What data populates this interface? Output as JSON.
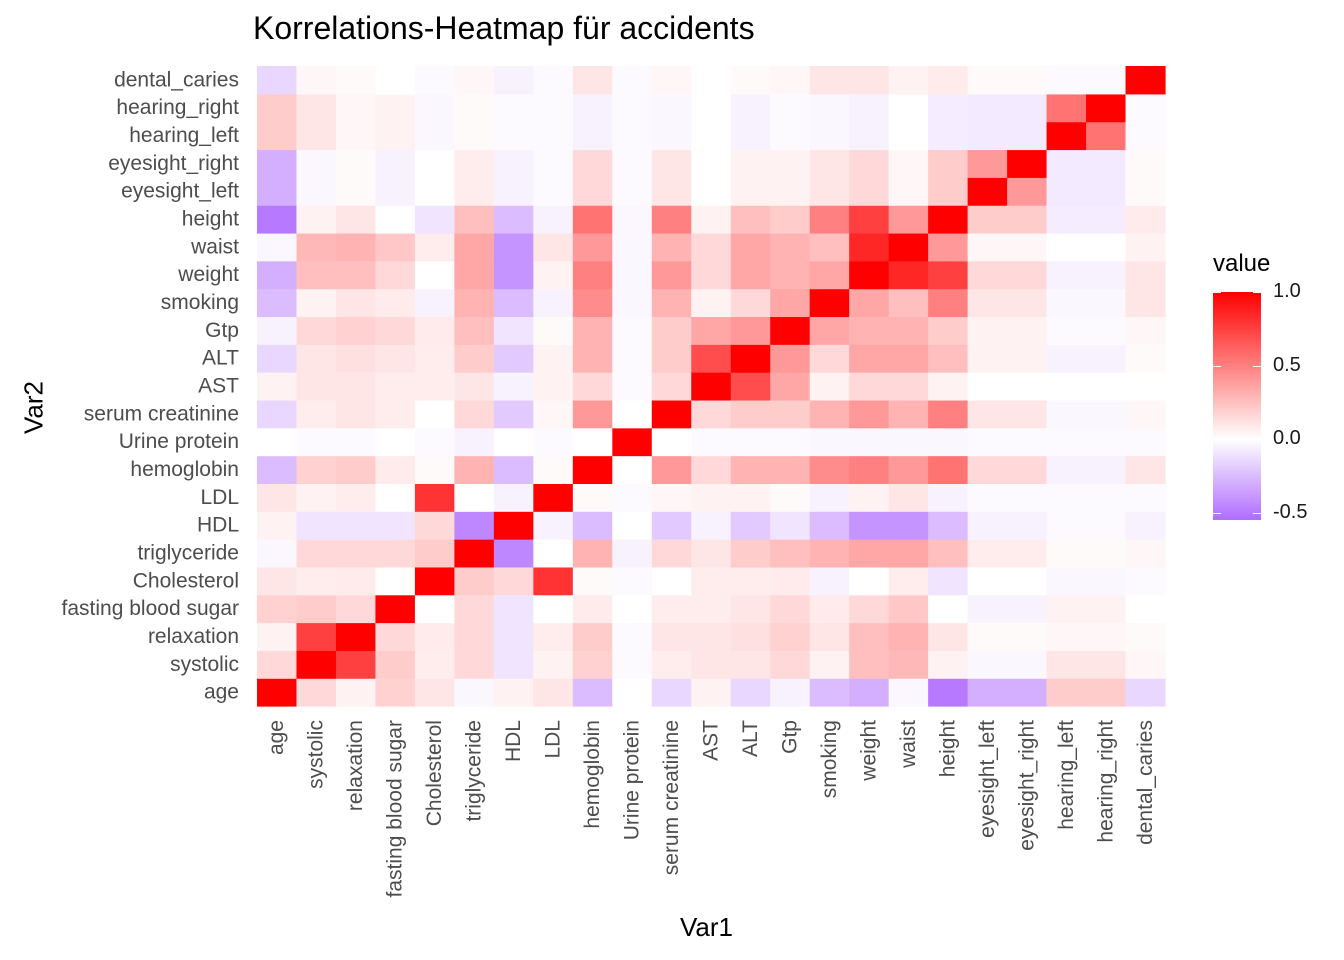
{
  "chart_data": {
    "type": "heatmap",
    "title": "Korrelations-Heatmap für accidents",
    "xlabel": "Var1",
    "ylabel": "Var2",
    "variables": [
      "age",
      "systolic",
      "relaxation",
      "fasting blood sugar",
      "Cholesterol",
      "triglyceride",
      "HDL",
      "LDL",
      "hemoglobin",
      "Urine protein",
      "serum creatinine",
      "AST",
      "ALT",
      "Gtp",
      "smoking",
      "weight",
      "waist",
      "height",
      "eyesight_left",
      "eyesight_right",
      "hearing_left",
      "hearing_right",
      "dental_caries"
    ],
    "legend": {
      "title": "value",
      "ticks": [
        "1.0",
        "0.5",
        "0.0",
        "-0.5"
      ],
      "tick_values": [
        1.0,
        0.5,
        0.0,
        -0.5
      ],
      "range": [
        -0.55,
        1.0
      ],
      "colors": {
        "low": "#b06cff",
        "mid": "#ffffff",
        "high": "#ff0000"
      }
    },
    "matrix": [
      [
        1.0,
        0.15,
        0.05,
        0.18,
        0.1,
        -0.03,
        0.05,
        0.1,
        -0.25,
        0.0,
        -0.15,
        0.05,
        -0.15,
        -0.05,
        -0.25,
        -0.3,
        -0.03,
        -0.5,
        -0.3,
        -0.3,
        0.2,
        0.2,
        -0.15
      ],
      [
        0.15,
        1.0,
        0.75,
        0.2,
        0.07,
        0.15,
        -0.1,
        0.05,
        0.18,
        -0.02,
        0.07,
        0.1,
        0.1,
        0.15,
        0.05,
        0.25,
        0.28,
        0.05,
        -0.03,
        -0.03,
        0.1,
        0.1,
        0.03
      ],
      [
        0.05,
        0.75,
        1.0,
        0.15,
        0.08,
        0.15,
        -0.1,
        0.07,
        0.2,
        -0.02,
        0.1,
        0.1,
        0.12,
        0.18,
        0.1,
        0.25,
        0.3,
        0.1,
        0.02,
        0.02,
        0.03,
        0.03,
        0.02
      ],
      [
        0.18,
        0.2,
        0.15,
        1.0,
        0.0,
        0.15,
        -0.1,
        0.0,
        0.08,
        0.0,
        0.07,
        0.07,
        0.1,
        0.15,
        0.08,
        0.15,
        0.22,
        0.0,
        -0.05,
        -0.05,
        0.05,
        0.05,
        0.0
      ],
      [
        0.1,
        0.07,
        0.08,
        0.0,
        1.0,
        0.2,
        0.15,
        0.8,
        0.02,
        -0.02,
        0.0,
        0.07,
        0.07,
        0.08,
        -0.05,
        0.0,
        0.07,
        -0.1,
        0.0,
        0.0,
        -0.03,
        -0.03,
        -0.02
      ],
      [
        -0.03,
        0.15,
        0.15,
        0.15,
        0.2,
        1.0,
        -0.45,
        0.0,
        0.3,
        -0.05,
        0.15,
        0.1,
        0.2,
        0.25,
        0.3,
        0.35,
        0.35,
        0.25,
        0.07,
        0.07,
        0.02,
        0.02,
        0.03
      ],
      [
        0.05,
        -0.1,
        -0.1,
        -0.1,
        0.15,
        -0.45,
        1.0,
        -0.05,
        -0.25,
        0.0,
        -0.2,
        -0.05,
        -0.2,
        -0.1,
        -0.25,
        -0.4,
        -0.4,
        -0.25,
        -0.05,
        -0.05,
        -0.02,
        -0.02,
        -0.05
      ],
      [
        0.1,
        0.05,
        0.07,
        0.0,
        0.8,
        0.0,
        -0.05,
        1.0,
        0.02,
        -0.02,
        0.03,
        0.05,
        0.05,
        0.02,
        -0.05,
        0.05,
        0.1,
        -0.05,
        -0.02,
        -0.02,
        -0.02,
        -0.02,
        -0.02
      ],
      [
        -0.25,
        0.18,
        0.2,
        0.08,
        0.02,
        0.3,
        -0.25,
        0.02,
        1.0,
        0.0,
        0.4,
        0.15,
        0.3,
        0.3,
        0.45,
        0.5,
        0.4,
        0.55,
        0.15,
        0.15,
        -0.05,
        -0.05,
        0.1
      ],
      [
        0.0,
        -0.02,
        -0.02,
        0.0,
        -0.02,
        -0.05,
        0.0,
        -0.02,
        0.0,
        1.0,
        0.0,
        -0.02,
        -0.02,
        -0.02,
        -0.03,
        -0.03,
        -0.03,
        -0.03,
        -0.02,
        -0.02,
        -0.02,
        -0.02,
        -0.02
      ],
      [
        -0.15,
        0.07,
        0.1,
        0.07,
        0.0,
        0.15,
        -0.2,
        0.03,
        0.4,
        0.0,
        1.0,
        0.15,
        0.2,
        0.2,
        0.3,
        0.4,
        0.3,
        0.5,
        0.1,
        0.1,
        -0.03,
        -0.03,
        0.03
      ],
      [
        0.05,
        0.1,
        0.1,
        0.07,
        0.07,
        0.1,
        -0.05,
        0.05,
        0.15,
        -0.02,
        0.15,
        1.0,
        0.7,
        0.35,
        0.05,
        0.15,
        0.15,
        0.05,
        0.0,
        0.0,
        0.0,
        0.0,
        0.0
      ],
      [
        -0.15,
        0.1,
        0.12,
        0.1,
        0.07,
        0.2,
        -0.2,
        0.05,
        0.3,
        -0.02,
        0.2,
        0.7,
        1.0,
        0.4,
        0.15,
        0.35,
        0.35,
        0.25,
        0.05,
        0.05,
        -0.05,
        -0.05,
        0.02
      ],
      [
        -0.05,
        0.15,
        0.18,
        0.15,
        0.08,
        0.25,
        -0.1,
        0.02,
        0.3,
        -0.02,
        0.2,
        0.35,
        0.4,
        1.0,
        0.35,
        0.3,
        0.3,
        0.2,
        0.05,
        0.05,
        -0.02,
        -0.02,
        0.03
      ],
      [
        -0.25,
        0.05,
        0.1,
        0.08,
        -0.05,
        0.3,
        -0.25,
        -0.05,
        0.45,
        -0.03,
        0.3,
        0.05,
        0.15,
        0.35,
        1.0,
        0.35,
        0.25,
        0.5,
        0.1,
        0.1,
        -0.03,
        -0.03,
        0.1
      ],
      [
        -0.3,
        0.25,
        0.25,
        0.15,
        0.0,
        0.35,
        -0.4,
        0.05,
        0.5,
        -0.03,
        0.4,
        0.15,
        0.35,
        0.3,
        0.35,
        1.0,
        0.85,
        0.75,
        0.15,
        0.15,
        -0.05,
        -0.05,
        0.1
      ],
      [
        -0.03,
        0.28,
        0.3,
        0.22,
        0.07,
        0.35,
        -0.4,
        0.1,
        0.4,
        -0.03,
        0.3,
        0.15,
        0.35,
        0.3,
        0.25,
        0.85,
        1.0,
        0.4,
        0.03,
        0.03,
        0.0,
        0.0,
        0.05
      ],
      [
        -0.5,
        0.05,
        0.1,
        0.0,
        -0.1,
        0.25,
        -0.25,
        -0.05,
        0.55,
        -0.03,
        0.5,
        0.05,
        0.25,
        0.2,
        0.5,
        0.75,
        0.4,
        1.0,
        0.2,
        0.2,
        -0.07,
        -0.07,
        0.08
      ],
      [
        -0.3,
        -0.03,
        0.02,
        -0.05,
        0.0,
        0.07,
        -0.05,
        -0.02,
        0.15,
        -0.02,
        0.1,
        0.0,
        0.05,
        0.05,
        0.1,
        0.15,
        0.03,
        0.2,
        1.0,
        0.4,
        -0.08,
        -0.08,
        0.02
      ],
      [
        -0.3,
        -0.03,
        0.02,
        -0.05,
        0.0,
        0.07,
        -0.05,
        -0.02,
        0.15,
        -0.02,
        0.1,
        0.0,
        0.05,
        0.05,
        0.1,
        0.15,
        0.03,
        0.2,
        0.4,
        1.0,
        -0.08,
        -0.08,
        0.02
      ],
      [
        0.2,
        0.1,
        0.03,
        0.05,
        -0.03,
        0.02,
        -0.02,
        -0.02,
        -0.05,
        -0.02,
        -0.03,
        0.0,
        -0.05,
        -0.02,
        -0.03,
        -0.05,
        0.0,
        -0.07,
        -0.08,
        -0.08,
        1.0,
        0.55,
        -0.02
      ],
      [
        0.2,
        0.1,
        0.03,
        0.05,
        -0.03,
        0.02,
        -0.02,
        -0.02,
        -0.05,
        -0.02,
        -0.03,
        0.0,
        -0.05,
        -0.02,
        -0.03,
        -0.05,
        0.0,
        -0.07,
        -0.08,
        -0.08,
        0.55,
        1.0,
        -0.02
      ],
      [
        -0.15,
        0.03,
        0.02,
        0.0,
        -0.02,
        0.03,
        -0.05,
        -0.02,
        0.1,
        -0.02,
        0.03,
        0.0,
        0.02,
        0.03,
        0.1,
        0.1,
        0.05,
        0.08,
        0.02,
        0.02,
        -0.02,
        -0.02,
        1.0
      ]
    ]
  }
}
